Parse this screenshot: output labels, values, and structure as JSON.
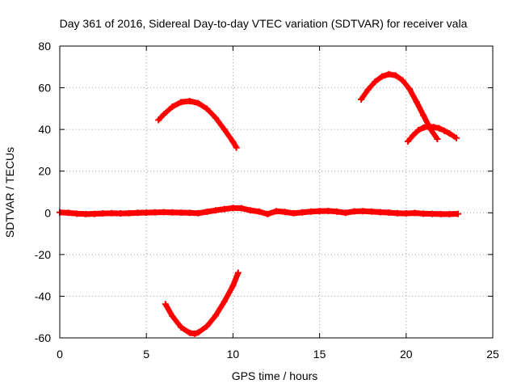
{
  "chart_data": {
    "type": "scatter",
    "title": "Day 361 of 2016, Sidereal Day-to-day VTEC variation (SDTVAR) for receiver vala",
    "xlabel": "GPS time / hours",
    "ylabel": "SDTVAR / TECUs",
    "xlim": [
      0,
      25
    ],
    "ylim": [
      -60,
      80
    ],
    "xticks": [
      0,
      5,
      10,
      15,
      20,
      25
    ],
    "yticks": [
      -60,
      -40,
      -20,
      0,
      20,
      40,
      60,
      80
    ],
    "xtick_labels": [
      "0",
      "5",
      "10",
      "15",
      "20",
      "25"
    ],
    "ytick_labels": [
      "-60",
      "-40",
      "-20",
      "0",
      "20",
      "40",
      "60",
      "80"
    ],
    "grid": true,
    "marker": "plus",
    "color": "#ff0000",
    "series": [
      {
        "name": "baseline",
        "x": [
          0.0,
          0.5,
          1.0,
          1.5,
          2.0,
          2.5,
          3.0,
          3.5,
          4.0,
          4.5,
          5.0,
          5.5,
          6.0,
          6.5,
          7.0,
          7.5,
          8.0,
          8.5,
          9.0,
          9.5,
          10.0,
          10.5,
          11.0,
          11.5,
          12.0,
          12.5,
          13.0,
          13.5,
          14.0,
          14.5,
          15.0,
          15.5,
          16.0,
          16.5,
          17.0,
          17.5,
          18.0,
          18.5,
          19.0,
          19.5,
          20.0,
          20.5,
          21.0,
          21.5,
          22.0,
          22.5,
          23.0
        ],
        "y": [
          0.2,
          0.0,
          -0.4,
          -0.6,
          -0.5,
          -0.3,
          -0.2,
          -0.3,
          -0.2,
          0.0,
          0.1,
          0.2,
          0.3,
          0.2,
          0.1,
          0.0,
          -0.2,
          0.5,
          1.2,
          1.8,
          2.3,
          2.2,
          1.2,
          0.6,
          -0.6,
          0.8,
          0.4,
          -0.2,
          0.2,
          0.6,
          0.8,
          0.9,
          0.6,
          0.0,
          0.7,
          0.8,
          0.6,
          0.3,
          0.1,
          -0.2,
          -0.3,
          -0.1,
          -0.4,
          -0.5,
          -0.6,
          -0.6,
          -0.5
        ]
      },
      {
        "name": "arc-upper-morning",
        "x": [
          5.7,
          6.0,
          6.5,
          7.0,
          7.5,
          8.0,
          8.5,
          9.0,
          9.5,
          10.0,
          10.2
        ],
        "y": [
          44.5,
          47.2,
          50.9,
          53.1,
          53.6,
          52.6,
          49.9,
          45.6,
          40.0,
          34.1,
          31.3
        ]
      },
      {
        "name": "arc-upper-evening",
        "x": [
          17.4,
          17.8,
          18.2,
          18.6,
          19.0,
          19.4,
          19.8,
          20.2,
          20.6,
          21.0,
          21.4,
          21.8
        ],
        "y": [
          54.4,
          59.1,
          62.9,
          65.4,
          66.5,
          65.9,
          63.5,
          59.3,
          53.2,
          46.7,
          40.2,
          35.4
        ]
      },
      {
        "name": "arc-upper-late",
        "x": [
          20.1,
          20.4,
          20.7,
          21.0,
          21.3,
          21.6,
          21.9,
          22.2,
          22.5,
          22.9
        ],
        "y": [
          34.3,
          37.2,
          39.6,
          40.9,
          41.4,
          41.1,
          40.6,
          39.4,
          38.1,
          35.9
        ]
      },
      {
        "name": "arc-lower",
        "x": [
          6.1,
          6.5,
          7.0,
          7.5,
          7.8,
          8.0,
          8.5,
          9.0,
          9.5,
          10.0,
          10.3
        ],
        "y": [
          -43.8,
          -49.6,
          -54.9,
          -57.6,
          -58.0,
          -57.4,
          -54.4,
          -49.3,
          -42.6,
          -35.0,
          -28.8
        ]
      }
    ]
  }
}
